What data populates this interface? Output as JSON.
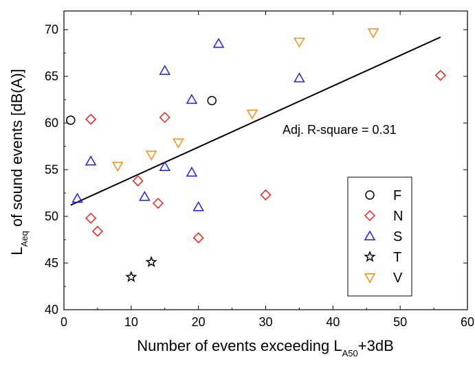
{
  "chart_data": {
    "type": "scatter",
    "xlabel": {
      "main": "Number of events exceeding L",
      "sub": "A50",
      "suffix": "+3dB"
    },
    "ylabel": {
      "main": "L",
      "sub": "Aeq",
      "suffix": " of sound events [dB(A)]"
    },
    "xlim": [
      0,
      60
    ],
    "ylim": [
      40,
      72
    ],
    "xticks": [
      0,
      10,
      20,
      30,
      40,
      50,
      60
    ],
    "yticks": [
      40,
      45,
      50,
      55,
      60,
      65,
      70
    ],
    "grid": false,
    "legend_position": "bottom-right",
    "annotation": "Adj. R-square = 0.31",
    "fit_line": {
      "x": [
        1,
        56
      ],
      "y": [
        51.2,
        69.2
      ]
    },
    "series": [
      {
        "name": "F",
        "marker": "circle",
        "color": "#000000",
        "points": [
          {
            "x": 1,
            "y": 60.3
          },
          {
            "x": 22,
            "y": 62.4
          }
        ]
      },
      {
        "name": "N",
        "marker": "diamond",
        "color": "#e8201f",
        "points": [
          {
            "x": 4,
            "y": 60.4
          },
          {
            "x": 15,
            "y": 60.6
          },
          {
            "x": 56,
            "y": 65.1
          },
          {
            "x": 11,
            "y": 53.8
          },
          {
            "x": 14,
            "y": 51.4
          },
          {
            "x": 4,
            "y": 49.8
          },
          {
            "x": 5,
            "y": 48.4
          },
          {
            "x": 20,
            "y": 47.7
          },
          {
            "x": 30,
            "y": 52.3
          }
        ]
      },
      {
        "name": "S",
        "marker": "triangle-up",
        "color": "#1f1fe6",
        "points": [
          {
            "x": 2,
            "y": 51.9
          },
          {
            "x": 4,
            "y": 55.9
          },
          {
            "x": 12,
            "y": 52.1
          },
          {
            "x": 15,
            "y": 55.3
          },
          {
            "x": 15,
            "y": 65.6
          },
          {
            "x": 19,
            "y": 62.5
          },
          {
            "x": 19,
            "y": 54.7
          },
          {
            "x": 20,
            "y": 51.0
          },
          {
            "x": 23,
            "y": 68.5
          },
          {
            "x": 35,
            "y": 64.8
          }
        ]
      },
      {
        "name": "T",
        "marker": "star",
        "color": "#000000",
        "points": [
          {
            "x": 10,
            "y": 43.5
          },
          {
            "x": 13,
            "y": 45.1
          }
        ]
      },
      {
        "name": "V",
        "marker": "triangle-down",
        "color": "#f28c1e",
        "points": [
          {
            "x": 8,
            "y": 55.4
          },
          {
            "x": 13,
            "y": 56.6
          },
          {
            "x": 17,
            "y": 57.9
          },
          {
            "x": 28,
            "y": 61.0
          },
          {
            "x": 35,
            "y": 68.7
          },
          {
            "x": 46,
            "y": 69.7
          }
        ]
      }
    ]
  }
}
